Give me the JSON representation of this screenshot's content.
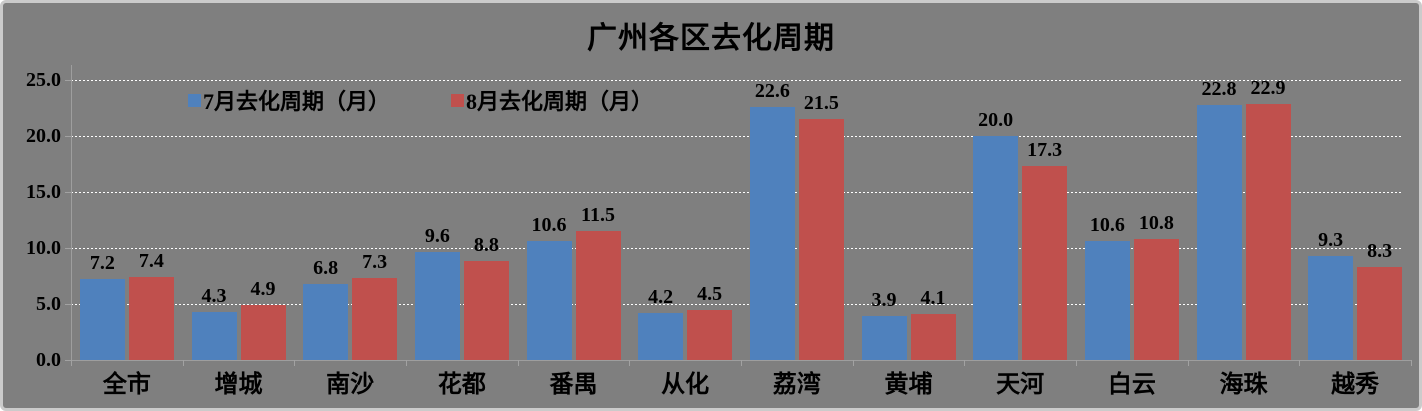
{
  "chart_data": {
    "type": "bar",
    "title": "广州各区去化周期",
    "categories": [
      "全市",
      "增城",
      "南沙",
      "花都",
      "番禺",
      "从化",
      "荔湾",
      "黄埔",
      "天河",
      "白云",
      "海珠",
      "越秀"
    ],
    "series": [
      {
        "name": "7月去化周期（月）",
        "color": "#4F81BD",
        "values": [
          7.2,
          4.3,
          6.8,
          9.6,
          10.6,
          4.2,
          22.6,
          3.9,
          20.0,
          10.6,
          22.8,
          9.3
        ]
      },
      {
        "name": "8月去化周期（月）",
        "color": "#C0504D",
        "values": [
          7.4,
          4.9,
          7.3,
          8.8,
          11.5,
          4.5,
          21.5,
          4.1,
          17.3,
          10.8,
          22.9,
          8.3
        ]
      }
    ],
    "xlabel": "",
    "ylabel": "",
    "ylim": [
      0,
      25
    ],
    "y_tick_step": 5,
    "y_tick_labels": [
      "0.0",
      "5.0",
      "10.0",
      "15.0",
      "20.0",
      "25.0"
    ],
    "value_label_decimals": 1,
    "grid": "horizontal dotted white",
    "legend_position": "top-left-inside"
  },
  "colors": {
    "background": "#7F7F7F",
    "frame_border": "#CBCBCB",
    "gridline": "#FFFFFF",
    "axis": "#9E9E9E",
    "text": "#000000",
    "series_july": "#4F81BD",
    "series_august": "#C0504D"
  }
}
